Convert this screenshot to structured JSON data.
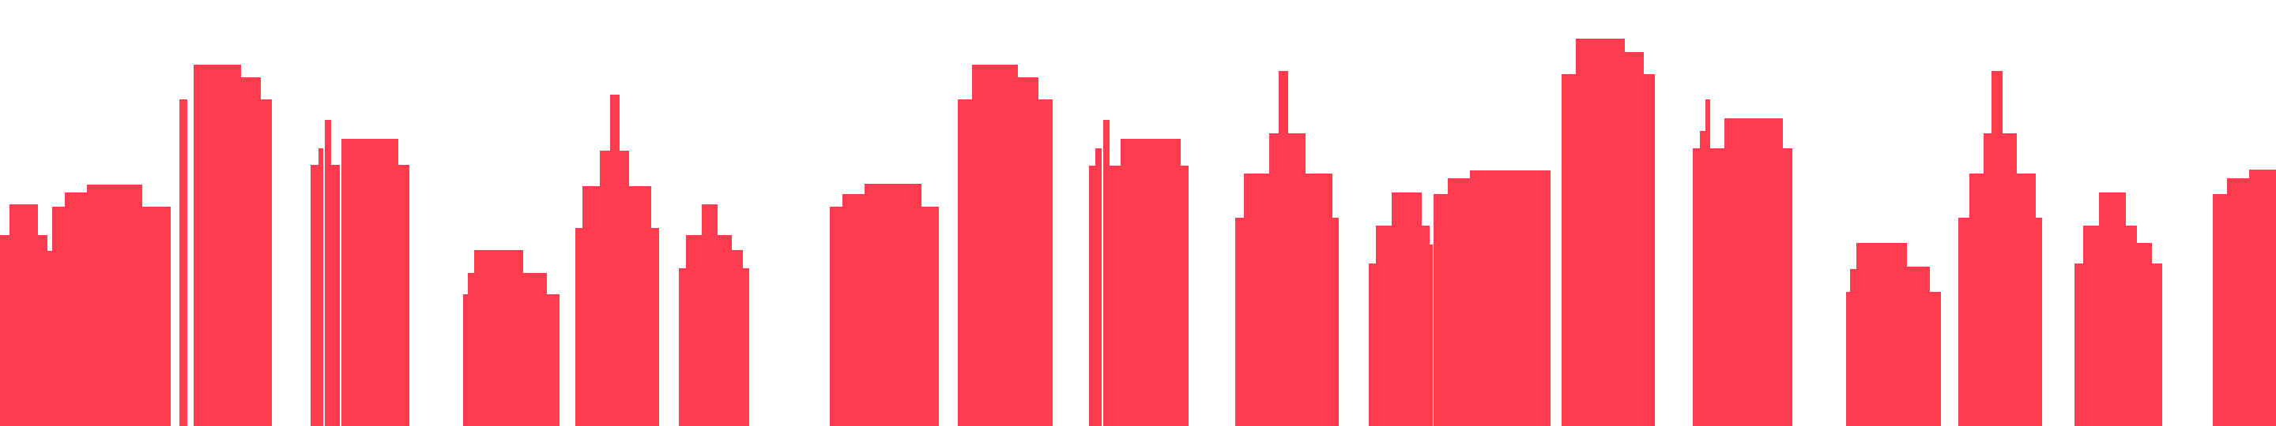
{
  "scene": {
    "background_color": "#ffffff",
    "building_color": "#ff3b4f",
    "building_count": 21,
    "style": "flat pixel city skyline silhouette"
  }
}
